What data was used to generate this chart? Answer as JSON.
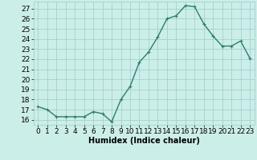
{
  "x": [
    0,
    1,
    2,
    3,
    4,
    5,
    6,
    7,
    8,
    9,
    10,
    11,
    12,
    13,
    14,
    15,
    16,
    17,
    18,
    19,
    20,
    21,
    22,
    23
  ],
  "y": [
    17.3,
    17.0,
    16.3,
    16.3,
    16.3,
    16.3,
    16.8,
    16.6,
    15.8,
    18.0,
    19.3,
    21.7,
    22.7,
    24.2,
    26.0,
    26.3,
    27.3,
    27.2,
    25.5,
    24.3,
    23.3,
    23.3,
    23.8,
    22.1
  ],
  "line_color": "#2e7d6e",
  "marker": "+",
  "marker_size": 3,
  "bg_color": "#cceee8",
  "grid_color": "#99cccc",
  "xlabel": "Humidex (Indice chaleur)",
  "ylim": [
    15.5,
    27.7
  ],
  "xlim": [
    -0.5,
    23.5
  ],
  "yticks": [
    16,
    17,
    18,
    19,
    20,
    21,
    22,
    23,
    24,
    25,
    26,
    27
  ],
  "xticks": [
    0,
    1,
    2,
    3,
    4,
    5,
    6,
    7,
    8,
    9,
    10,
    11,
    12,
    13,
    14,
    15,
    16,
    17,
    18,
    19,
    20,
    21,
    22,
    23
  ],
  "xlabel_fontsize": 7,
  "tick_fontsize": 6.5
}
